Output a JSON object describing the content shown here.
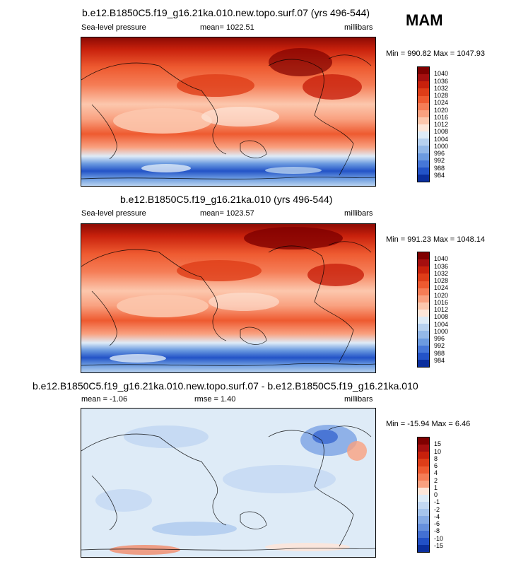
{
  "season": "MAM",
  "panels": [
    {
      "title": "b.e12.B1850C5.f19_g16.21ka.010.new.topo.surf.07 (yrs 496-544)",
      "left_label": "Sea-level pressure",
      "center_label": "mean= 1022.51",
      "right_label": "millibars",
      "minmax": "Min = 990.82 Max = 1047.93",
      "levels": [
        "1040",
        "1036",
        "1032",
        "1028",
        "1024",
        "1020",
        "1016",
        "1012",
        "1008",
        "1004",
        "1000",
        "996",
        "992",
        "988",
        "984"
      ],
      "colors": [
        "#7f0000",
        "#a50f0f",
        "#c8210c",
        "#de3d18",
        "#ee5a30",
        "#f57d56",
        "#f9a180",
        "#fcc7ad",
        "#fde6d9",
        "#deebf7",
        "#b7d1ef",
        "#93b8e8",
        "#6c9be0",
        "#4677d8",
        "#2353c7",
        "#0b2f9e"
      ]
    },
    {
      "title": "b.e12.B1850C5.f19_g16.21ka.010 (yrs 496-544)",
      "left_label": "Sea-level pressure",
      "center_label": "mean= 1023.57",
      "right_label": "millibars",
      "minmax": "Min = 991.23 Max = 1048.14",
      "levels": [
        "1040",
        "1036",
        "1032",
        "1028",
        "1024",
        "1020",
        "1016",
        "1012",
        "1008",
        "1004",
        "1000",
        "996",
        "992",
        "988",
        "984"
      ],
      "colors": [
        "#7f0000",
        "#a50f0f",
        "#c8210c",
        "#de3d18",
        "#ee5a30",
        "#f57d56",
        "#f9a180",
        "#fcc7ad",
        "#fde6d9",
        "#deebf7",
        "#b7d1ef",
        "#93b8e8",
        "#6c9be0",
        "#4677d8",
        "#2353c7",
        "#0b2f9e"
      ]
    },
    {
      "title": "b.e12.B1850C5.f19_g16.21ka.010.new.topo.surf.07 - b.e12.B1850C5.f19_g16.21ka.010",
      "left_label": "mean =  -1.06",
      "center_label": "rmse =   1.40",
      "right_label": "millibars",
      "minmax": "Min = -15.94 Max =   6.46",
      "levels": [
        "15",
        "10",
        "8",
        "6",
        "4",
        "2",
        "1",
        "0",
        "-1",
        "-2",
        "-4",
        "-6",
        "-8",
        "-10",
        "-15"
      ],
      "colors": [
        "#7f0000",
        "#a50f0f",
        "#c8210c",
        "#de3d18",
        "#ee5a30",
        "#f57d56",
        "#f9a180",
        "#fde6d9",
        "#deebf7",
        "#c3d8f2",
        "#a6c4ec",
        "#86abe5",
        "#6690dd",
        "#4370d3",
        "#2250c5",
        "#0b2f9e"
      ]
    }
  ]
}
